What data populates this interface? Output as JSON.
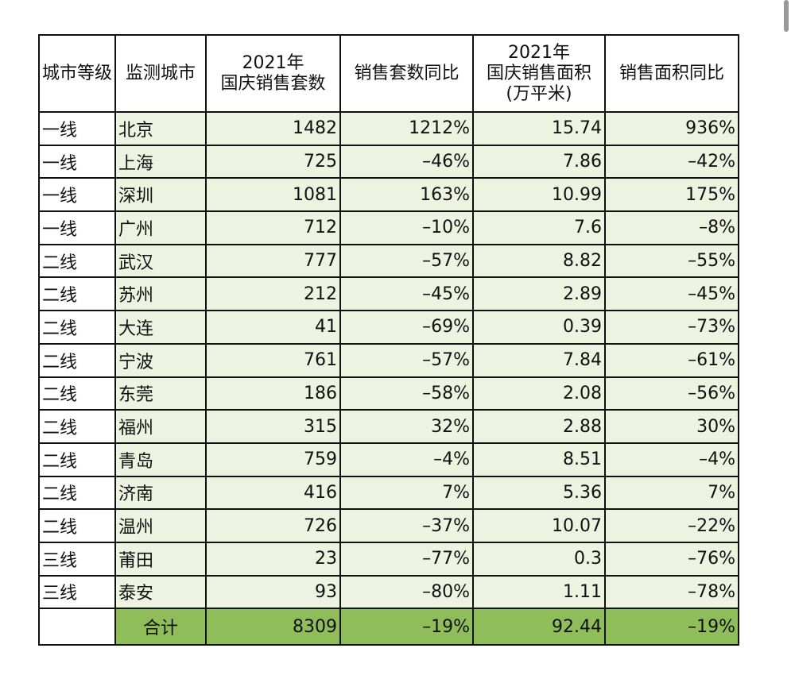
{
  "table": {
    "header": [
      [
        "城市等级"
      ],
      [
        "监测城市"
      ],
      [
        "2021年",
        "国庆销售套数"
      ],
      [
        "销售套数同比"
      ],
      [
        "2021年",
        "国庆销售面积",
        "(万平米)"
      ],
      [
        "销售面积同比"
      ]
    ],
    "rows": [
      [
        "一线",
        "北京",
        "1482",
        "1212%",
        "15.74",
        "936%"
      ],
      [
        "一线",
        "上海",
        "725",
        "–46%",
        "7.86",
        "–42%"
      ],
      [
        "一线",
        "深圳",
        "1081",
        "163%",
        "10.99",
        "175%"
      ],
      [
        "一线",
        "广州",
        "712",
        "–10%",
        "7.6",
        "–8%"
      ],
      [
        "二线",
        "武汉",
        "777",
        "–57%",
        "8.82",
        "–55%"
      ],
      [
        "二线",
        "苏州",
        "212",
        "–45%",
        "2.89",
        "–45%"
      ],
      [
        "二线",
        "大连",
        "41",
        "–69%",
        "0.39",
        "–73%"
      ],
      [
        "二线",
        "宁波",
        "761",
        "–57%",
        "7.84",
        "–61%"
      ],
      [
        "二线",
        "东莞",
        "186",
        "–58%",
        "2.08",
        "–56%"
      ],
      [
        "二线",
        "福州",
        "315",
        "32%",
        "2.88",
        "30%"
      ],
      [
        "二线",
        "青岛",
        "759",
        "–4%",
        "8.51",
        "–4%"
      ],
      [
        "二线",
        "济南",
        "416",
        "7%",
        "5.36",
        "7%"
      ],
      [
        "二线",
        "温州",
        "726",
        "–37%",
        "10.07",
        "–22%"
      ],
      [
        "三线",
        "莆田",
        "23",
        "–77%",
        "0.3",
        "–76%"
      ],
      [
        "三线",
        "泰安",
        "93",
        "–80%",
        "1.11",
        "–78%"
      ]
    ],
    "total": [
      "合计",
      "8309",
      "–19%",
      "92.44",
      "–19%"
    ]
  }
}
